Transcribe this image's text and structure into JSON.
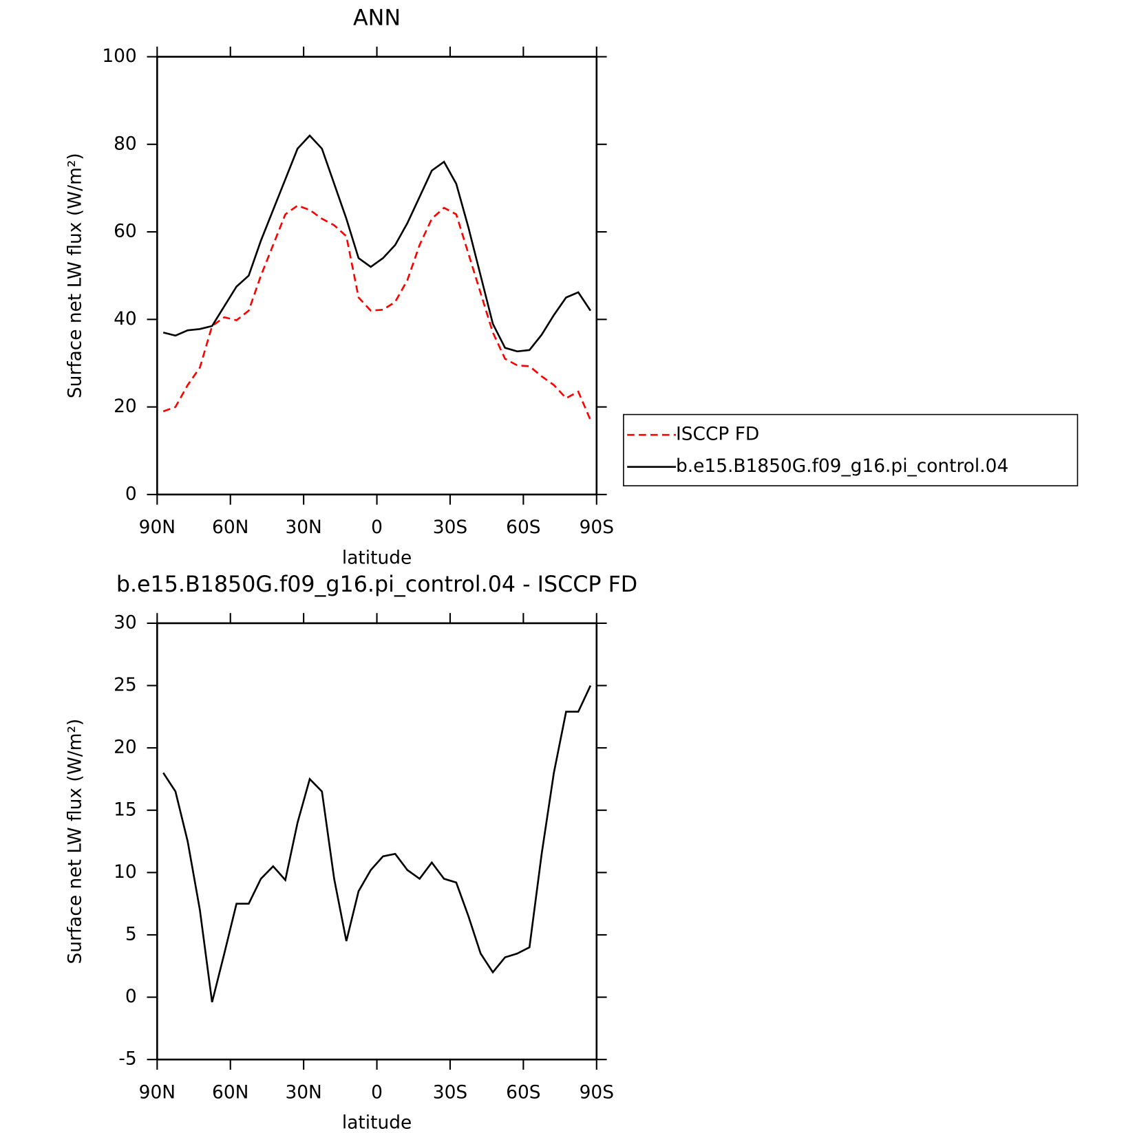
{
  "chart_data": [
    {
      "type": "line",
      "title": "ANN",
      "xlabel": "latitude",
      "ylabel": "Surface net LW flux (W/m²)",
      "x": [
        87.5,
        82.5,
        77.5,
        72.5,
        67.5,
        62.5,
        57.5,
        52.5,
        47.5,
        42.5,
        37.5,
        32.5,
        27.5,
        22.5,
        17.5,
        12.5,
        7.5,
        2.5,
        -2.5,
        -7.5,
        -12.5,
        -17.5,
        -22.5,
        -27.5,
        -32.5,
        -37.5,
        -42.5,
        -47.5,
        -52.5,
        -57.5,
        -62.5,
        -67.5,
        -72.5,
        -77.5,
        -82.5,
        -87.5
      ],
      "series": [
        {
          "name": "ISCCP FD",
          "color": "#ff0000",
          "line_style": "dashed",
          "values": [
            19,
            20,
            25,
            29,
            38.5,
            40.5,
            39.8,
            42,
            50,
            57,
            64,
            66,
            65,
            63,
            61.5,
            59,
            45,
            42,
            42.2,
            44,
            49,
            57,
            63,
            65.5,
            64,
            55,
            46,
            37,
            31,
            29.5,
            29.3,
            27,
            25,
            22,
            23.5,
            17
          ]
        },
        {
          "name": "b.e15.B1850G.f09_g16.pi_control.04",
          "color": "#000000",
          "line_style": "solid",
          "values": [
            37,
            36.3,
            37.5,
            37.8,
            38.5,
            43,
            47.5,
            50,
            58,
            65,
            72,
            79,
            82,
            79,
            71,
            63,
            54,
            52,
            54,
            57,
            62,
            68,
            74,
            76,
            71,
            61,
            50,
            39,
            33.5,
            32.7,
            33,
            36.5,
            41,
            45,
            46.2,
            42
          ]
        }
      ],
      "xlim": [
        90,
        -90
      ],
      "xticks": [
        {
          "value": 90,
          "label": "90N"
        },
        {
          "value": 60,
          "label": "60N"
        },
        {
          "value": 30,
          "label": "30N"
        },
        0,
        {
          "value": -30,
          "label": "30S"
        },
        {
          "value": -60,
          "label": "60S"
        },
        {
          "value": -90,
          "label": "90S"
        }
      ],
      "ylim": [
        0,
        100
      ],
      "yticks": [
        0,
        20,
        40,
        60,
        80,
        100
      ],
      "legend": "right"
    },
    {
      "type": "line",
      "title": "b.e15.B1850G.f09_g16.pi_control.04 - ISCCP FD",
      "xlabel": "latitude",
      "ylabel": "Surface net LW flux (W/m²)",
      "x": [
        87.5,
        82.5,
        77.5,
        72.5,
        67.5,
        62.5,
        57.5,
        52.5,
        47.5,
        42.5,
        37.5,
        32.5,
        27.5,
        22.5,
        17.5,
        12.5,
        7.5,
        2.5,
        -2.5,
        -7.5,
        -12.5,
        -17.5,
        -22.5,
        -27.5,
        -32.5,
        -37.5,
        -42.5,
        -47.5,
        -52.5,
        -57.5,
        -62.5,
        -67.5,
        -72.5,
        -77.5,
        -82.5,
        -87.5
      ],
      "values": [
        18,
        16.5,
        12.5,
        7,
        -0.4,
        3.5,
        7.5,
        7.5,
        9.5,
        10.5,
        9.4,
        14,
        17.5,
        16.5,
        9.5,
        4.5,
        8.5,
        10.2,
        11.3,
        11.5,
        10.2,
        9.5,
        10.8,
        9.5,
        9.2,
        6.5,
        3.5,
        2,
        3.2,
        3.5,
        4,
        11.5,
        18,
        22.9,
        22.9,
        25
      ],
      "color": "#000000",
      "xlim": [
        90,
        -90
      ],
      "xticks": [
        {
          "value": 90,
          "label": "90N"
        },
        {
          "value": 60,
          "label": "60N"
        },
        {
          "value": 30,
          "label": "30N"
        },
        0,
        {
          "value": -30,
          "label": "30S"
        },
        {
          "value": -60,
          "label": "60S"
        },
        {
          "value": -90,
          "label": "90S"
        }
      ],
      "ylim": [
        -5,
        30
      ],
      "yticks": [
        -5,
        0,
        5,
        10,
        15,
        20,
        25,
        30
      ]
    }
  ]
}
